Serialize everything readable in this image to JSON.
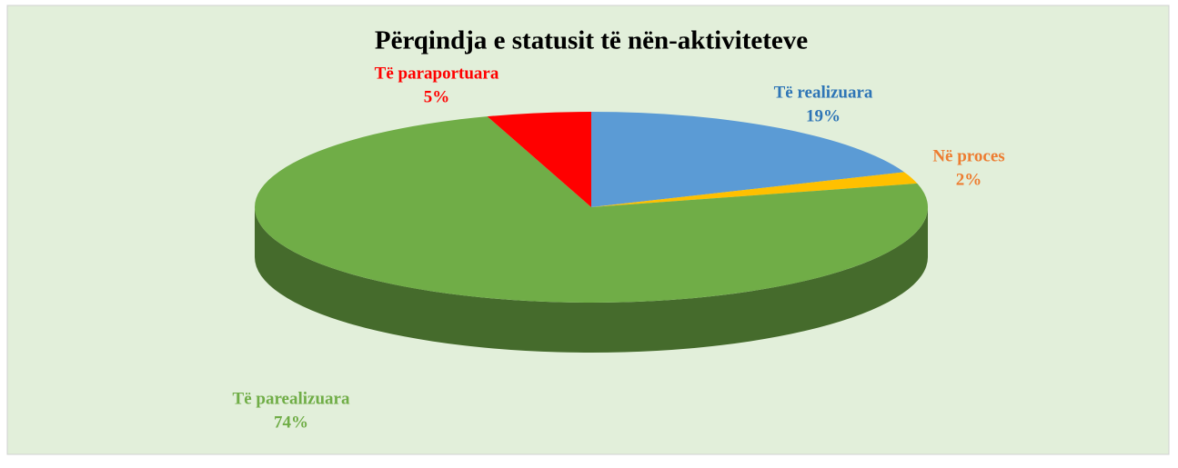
{
  "chart_data": {
    "type": "pie",
    "title": "Përqindja e statusit të nën-aktiviteteve",
    "categories": [
      "Të realizuara",
      "Në proces",
      "Të parealizuara",
      "Të paraportuara"
    ],
    "values": [
      19,
      2,
      74,
      5
    ],
    "value_labels": [
      "19%",
      "2%",
      "74%",
      "5%"
    ],
    "colors": [
      "#5b9bd5",
      "#ffc000",
      "#70ad47",
      "#ff0000"
    ],
    "label_colors": [
      "#2e75b6",
      "#ed7d31",
      "#70ad47",
      "#ff0000"
    ]
  }
}
